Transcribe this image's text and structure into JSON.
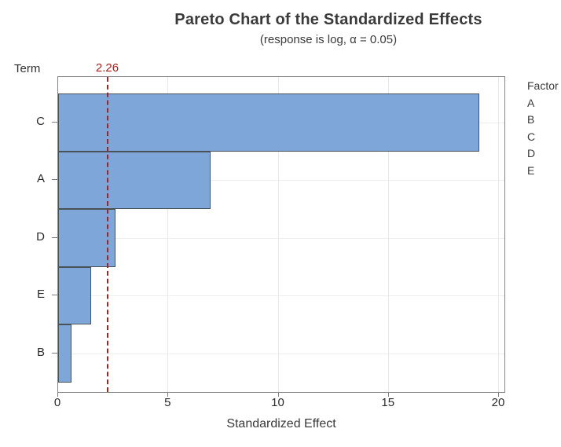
{
  "chart_data": {
    "type": "bar",
    "orientation": "horizontal",
    "title": "Pareto Chart of the Standardized Effects",
    "subtitle": "(response is log, α = 0.05)",
    "xlabel": "Standardized Effect",
    "ylabel": "Term",
    "categories": [
      "C",
      "A",
      "D",
      "E",
      "B"
    ],
    "values": [
      19.1,
      6.9,
      2.6,
      1.5,
      0.6
    ],
    "x_ticks": [
      0,
      5,
      10,
      15,
      20
    ],
    "xlim": [
      0,
      20.3
    ],
    "grid": true,
    "legend": {
      "header": "Factor",
      "position": "right",
      "items": [
        "A",
        "B",
        "C",
        "D",
        "E"
      ]
    },
    "reference_line": {
      "value": 2.26,
      "label": "2.26",
      "style": "dashed"
    },
    "colors": {
      "bar_fill": "#7ea6d8",
      "bar_border": "#4a5259",
      "reference_line": "#a8201f",
      "plot_border": "#848484",
      "gridline": "#e7e7e7",
      "text": "#3a3a3a"
    }
  }
}
